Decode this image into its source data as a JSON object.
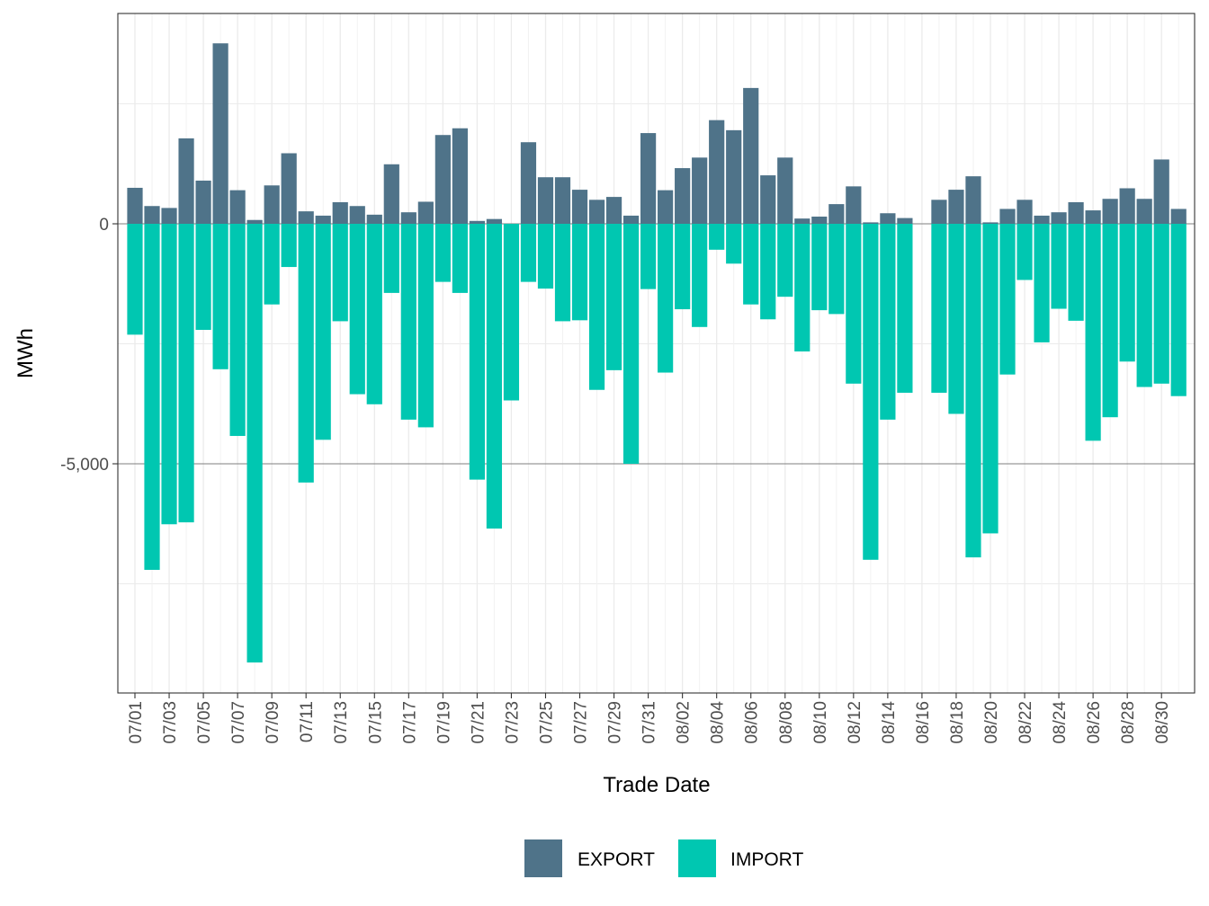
{
  "chart_data": {
    "type": "bar",
    "stacked": true,
    "xlabel": "Trade Date",
    "ylabel": "MWh",
    "ylim": [
      -9600,
      4300
    ],
    "yticks": [
      0,
      -5000
    ],
    "ytick_labels": [
      "0",
      "-5,000"
    ],
    "grid": true,
    "legend_position": "bottom",
    "categories": [
      "07/01",
      "07/02",
      "07/03",
      "07/04",
      "07/05",
      "07/06",
      "07/07",
      "07/08",
      "07/09",
      "07/10",
      "07/11",
      "07/12",
      "07/13",
      "07/14",
      "07/15",
      "07/16",
      "07/17",
      "07/18",
      "07/19",
      "07/20",
      "07/21",
      "07/22",
      "07/23",
      "07/24",
      "07/25",
      "07/26",
      "07/27",
      "07/28",
      "07/29",
      "07/30",
      "07/31",
      "08/01",
      "08/02",
      "08/03",
      "08/04",
      "08/05",
      "08/06",
      "08/07",
      "08/08",
      "08/09",
      "08/10",
      "08/11",
      "08/12",
      "08/13",
      "08/14",
      "08/15",
      "08/16",
      "08/17",
      "08/18",
      "08/19",
      "08/20",
      "08/21",
      "08/22",
      "08/23",
      "08/24",
      "08/25",
      "08/26",
      "08/27",
      "08/28",
      "08/29",
      "08/30",
      "08/31"
    ],
    "xtick_labels": [
      "07/01",
      "07/03",
      "07/05",
      "07/07",
      "07/09",
      "07/11",
      "07/13",
      "07/15",
      "07/17",
      "07/19",
      "07/21",
      "07/23",
      "07/25",
      "07/27",
      "07/29",
      "07/31",
      "08/02",
      "08/04",
      "08/06",
      "08/08",
      "08/10",
      "08/12",
      "08/14",
      "08/16",
      "08/18",
      "08/20",
      "08/22",
      "08/24",
      "08/26",
      "08/28",
      "08/30"
    ],
    "series": [
      {
        "name": "EXPORT",
        "color": "#4f7389",
        "values": [
          750,
          370,
          330,
          1780,
          900,
          3760,
          700,
          80,
          800,
          1470,
          260,
          170,
          450,
          370,
          190,
          1240,
          240,
          460,
          1850,
          1990,
          60,
          100,
          0,
          1700,
          970,
          970,
          710,
          500,
          560,
          170,
          1890,
          700,
          1160,
          1380,
          2160,
          1950,
          2830,
          1010,
          1380,
          110,
          150,
          410,
          780,
          30,
          220,
          120,
          0,
          500,
          710,
          990,
          30,
          310,
          500,
          170,
          240,
          450,
          280,
          520,
          740,
          520,
          1340,
          310
        ]
      },
      {
        "name": "IMPORT",
        "color": "#00c7b1",
        "values": [
          -2310,
          -7210,
          -6260,
          -6220,
          -2210,
          -3030,
          -4420,
          -9140,
          -1680,
          -900,
          -5390,
          -4500,
          -2030,
          -3550,
          -3760,
          -1440,
          -4080,
          -4240,
          -1210,
          -1440,
          -5330,
          -6350,
          -3680,
          -1210,
          -1350,
          -2030,
          -2010,
          -3460,
          -3050,
          -5000,
          -1360,
          -3100,
          -1780,
          -2150,
          -540,
          -830,
          -1680,
          -1990,
          -1520,
          -2660,
          -1800,
          -1880,
          -3330,
          -7000,
          -4080,
          -3520,
          0,
          -3520,
          -3960,
          -6950,
          -6450,
          -3140,
          -1170,
          -2470,
          -1770,
          -2020,
          -4520,
          -4030,
          -2870,
          -3400,
          -3330,
          -3590
        ]
      }
    ]
  }
}
